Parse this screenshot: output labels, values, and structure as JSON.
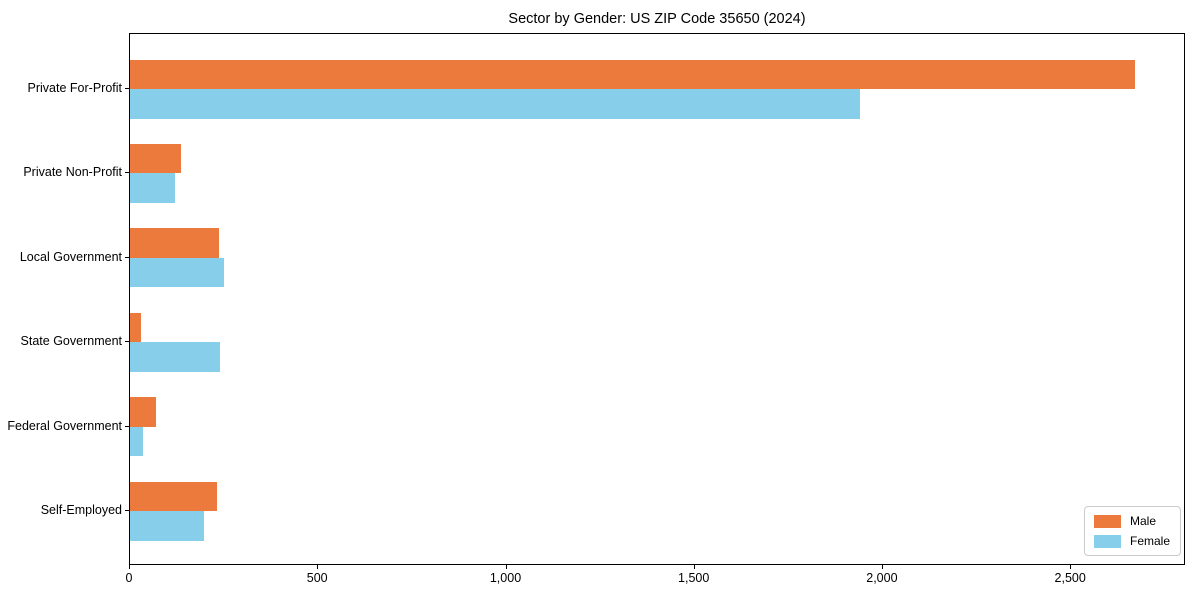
{
  "chart_data": {
    "type": "bar",
    "orientation": "horizontal",
    "title": "Sector by Gender: US ZIP Code 35650 (2024)",
    "categories": [
      "Private For-Profit",
      "Private Non-Profit",
      "Local Government",
      "State Government",
      "Federal Government",
      "Self-Employed"
    ],
    "series": [
      {
        "name": "Male",
        "color": "#EC7A3C",
        "values": [
          2670,
          135,
          235,
          30,
          70,
          232
        ]
      },
      {
        "name": "Female",
        "color": "#87CEEB",
        "values": [
          1940,
          120,
          250,
          240,
          35,
          196
        ]
      }
    ],
    "xlim": [
      0,
      2805
    ],
    "xticks": [
      0,
      500,
      1000,
      1500,
      2000,
      2500
    ],
    "xtick_labels": [
      "0",
      "500",
      "1,000",
      "1,500",
      "2,000",
      "2,500"
    ],
    "xlabel": "",
    "ylabel": "",
    "grid": false,
    "legend_position": "lower right",
    "legend_entries": [
      "Male",
      "Female"
    ]
  }
}
